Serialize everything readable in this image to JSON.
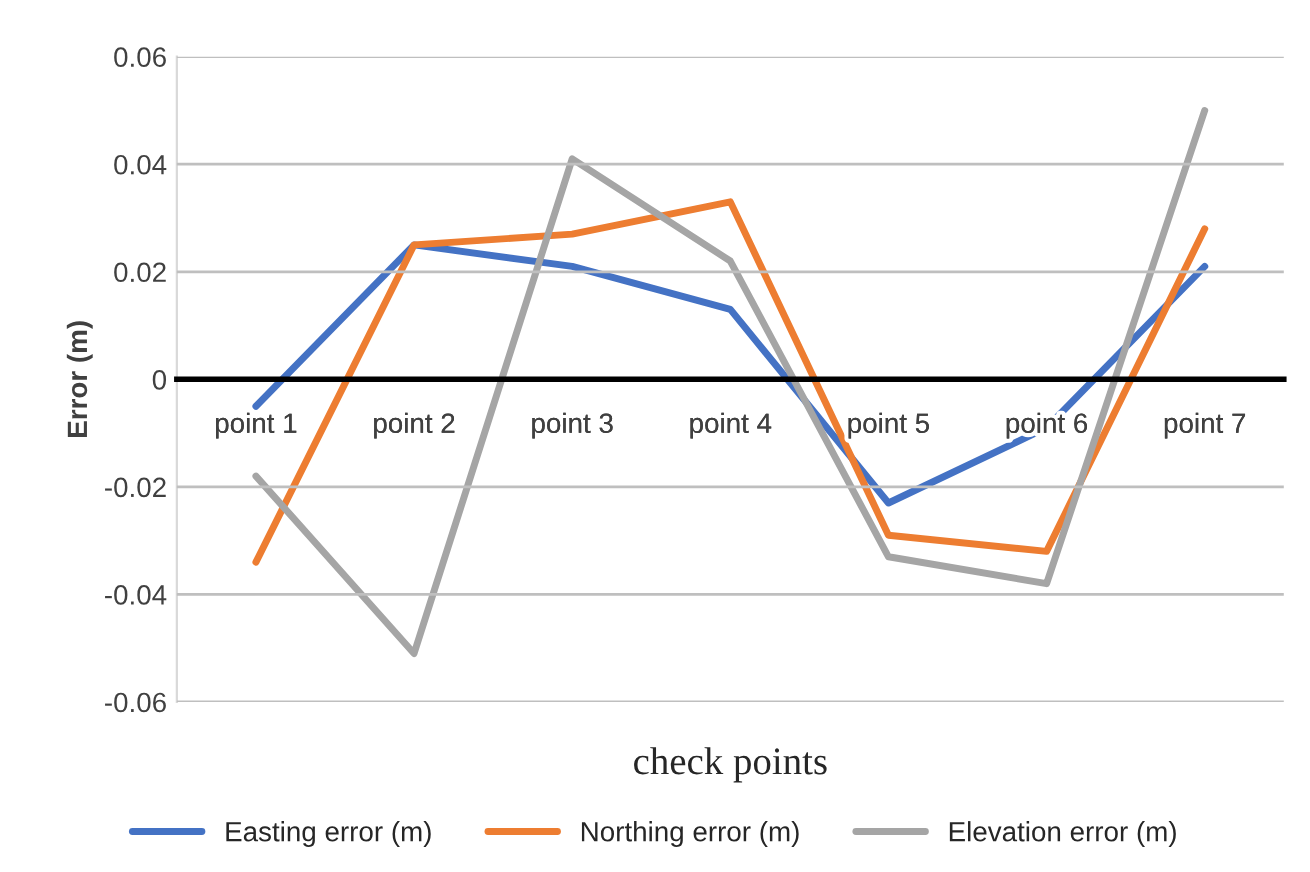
{
  "chart_data": {
    "type": "line",
    "xlabel": "check points",
    "ylabel": "Error (m)",
    "categories": [
      "point 1",
      "point 2",
      "point 3",
      "point 4",
      "point 5",
      "point 6",
      "point 7"
    ],
    "series": [
      {
        "name": "Easting error (m)",
        "color": "#4472c4",
        "values": [
          -0.005,
          0.025,
          0.021,
          0.013,
          -0.023,
          -0.009,
          0.021
        ]
      },
      {
        "name": "Northing error (m)",
        "color": "#ed7d31",
        "values": [
          -0.034,
          0.025,
          0.027,
          0.033,
          -0.029,
          -0.032,
          0.028
        ]
      },
      {
        "name": "Elevation error (m)",
        "color": "#a5a5a5",
        "values": [
          -0.018,
          -0.051,
          0.041,
          0.022,
          -0.033,
          -0.038,
          0.05
        ]
      }
    ],
    "ylim": [
      -0.06,
      0.06
    ],
    "yticks": [
      {
        "value": -0.06,
        "label": "-0.06"
      },
      {
        "value": -0.04,
        "label": "-0.04"
      },
      {
        "value": -0.02,
        "label": "-0.02"
      },
      {
        "value": 0,
        "label": "0"
      },
      {
        "value": 0.02,
        "label": "0.02"
      },
      {
        "value": 0.04,
        "label": "0.04"
      },
      {
        "value": 0.06,
        "label": "0.06"
      }
    ],
    "grid": "y",
    "legend": "bottom",
    "marker": "none",
    "line_style": "solid"
  }
}
